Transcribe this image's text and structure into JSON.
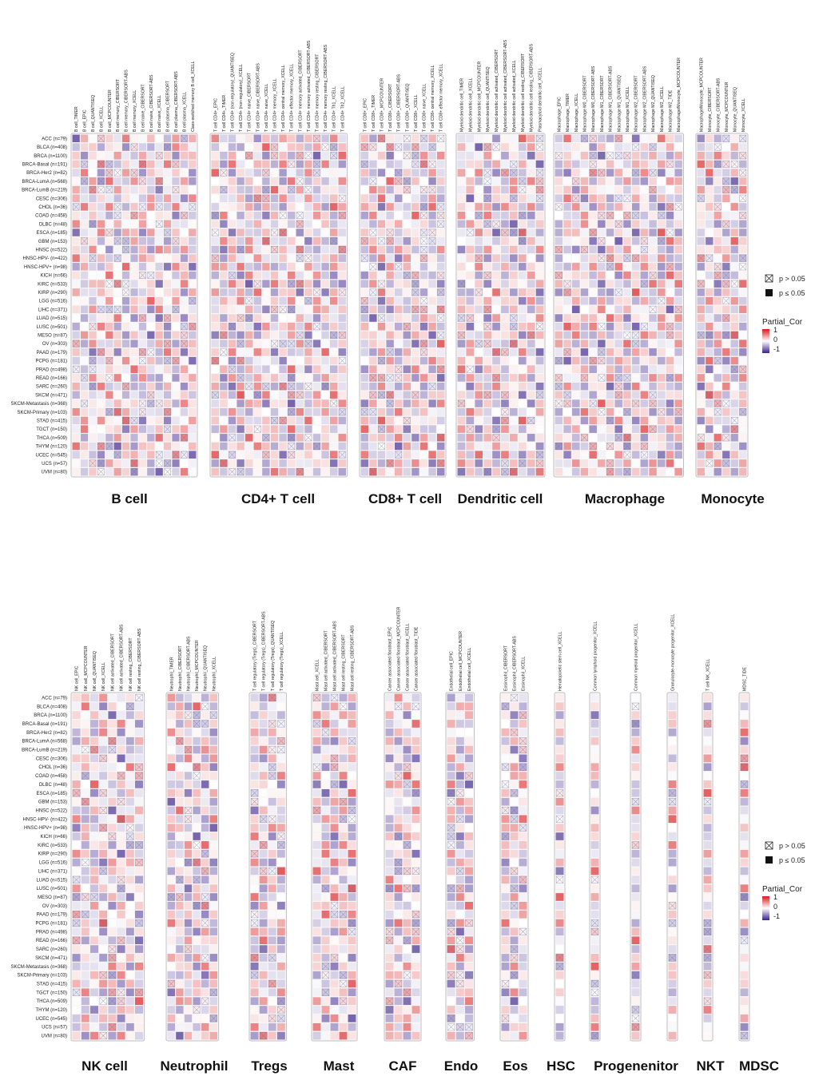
{
  "chart_data": {
    "type": "heatmap",
    "title": "",
    "value_label": "Partial_Cor",
    "value_range": [
      -1,
      1
    ],
    "colors": {
      "negative": "#3b1f8a",
      "zero": "#ffffff",
      "positive": "#d7191c",
      "frame": "#bdbdbd",
      "grid": "#f2f2f2"
    },
    "legend": {
      "ns_label": "p > 0.05",
      "sig_label": "p ≤ 0.05",
      "title": "Partial_Cor",
      "ticks": [
        "1",
        "0",
        "-1"
      ]
    },
    "rows": [
      "ACC (n=79)",
      "BLCA (n=408)",
      "BRCA (n=1100)",
      "BRCA-Basal (n=191)",
      "BRCA-Her2 (n=82)",
      "BRCA-LumA (n=568)",
      "BRCA-LumB (n=219)",
      "CESC (n=306)",
      "CHOL (n=36)",
      "COAD (n=458)",
      "DLBC (n=48)",
      "ESCA (n=185)",
      "GBM (n=153)",
      "HNSC (n=522)",
      "HNSC-HPV- (n=422)",
      "HNSC-HPV+ (n=98)",
      "KICH (n=66)",
      "KIRC (n=533)",
      "KIRP (n=290)",
      "LGG (n=516)",
      "LIHC (n=371)",
      "LUAD (n=515)",
      "LUSC (n=501)",
      "MESO (n=87)",
      "OV (n=303)",
      "PAAD (n=179)",
      "PCPG (n=181)",
      "PRAD (n=498)",
      "READ (n=166)",
      "SARC (n=260)",
      "SKCM (n=471)",
      "SKCM-Metastasis (n=368)",
      "SKCM-Primary (n=103)",
      "STAD (n=415)",
      "TGCT (n=150)",
      "THCA (n=509)",
      "THYM (n=120)",
      "UCEC (n=545)",
      "UCS (n=57)",
      "UVM (n=80)"
    ],
    "panels": [
      {
        "groups": [
          {
            "label": "B cell",
            "columns": [
              "B cell_TIMER",
              "B cell_EPIC",
              "B cell_QUANTISEQ",
              "B cell_XCELL",
              "B cell_MCPCOUNTER",
              "B cell memory_CIBERSORT",
              "B cell memory_CIBERSORT-ABS",
              "B cell memory_XCELL",
              "B cell naive_CIBERSORT",
              "B cell naive_CIBERSORT-ABS",
              "B cell naive_XCELL",
              "B cell plasma_CIBERSORT",
              "B cell plasma_CIBERSORT-ABS",
              "B cell plasma_XCELL",
              "Class-switched memory B cell_XCELL"
            ]
          },
          {
            "label": "CD4+ T cell",
            "columns": [
              "T cell CD4+_EPIC",
              "T cell CD4+_TIMER",
              "T cell CD4+ (non-regulatory)_QUANTISEQ",
              "T cell CD4+ (non-regulatory)_XCELL",
              "T cell CD4+ naive_CIBERSORT",
              "T cell CD4+ naive_CIBERSORT-ABS",
              "T cell CD4+ naive_XCELL",
              "T cell CD4+ memory_XCELL",
              "T cell CD4+ central memory_XCELL",
              "T cell CD4+ effector memory_XCELL",
              "T cell CD4+ memory activated_CIBERSORT",
              "T cell CD4+ memory activated_CIBERSORT-ABS",
              "T cell CD4+ memory resting_CIBERSORT",
              "T cell CD4+ memory resting_CIBERSORT-ABS",
              "T cell CD4+ Th1_XCELL",
              "T cell CD4+ Th2_XCELL"
            ]
          },
          {
            "label": "CD8+ T cell",
            "columns": [
              "T cell CD8+_EPIC",
              "T cell CD8+_TIMER",
              "T cell CD8+_MCPCOUNTER",
              "T cell CD8+_CIBERSORT",
              "T cell CD8+_CIBERSORT-ABS",
              "T cell CD8+_QUANTISEQ",
              "T cell CD8+_XCELL",
              "T cell CD8+ naive_XCELL",
              "T cell CD8+ central memory_XCELL",
              "T cell CD8+ effector memory_XCELL"
            ]
          },
          {
            "label": "Dendritic cell",
            "columns": [
              "Myeloid dendritic cell_TIMER",
              "Myeloid dendritic cell_XCELL",
              "Myeloid dendritic cell_MCPCOUNTER",
              "Myeloid dendritic cell_QUANTISEQ",
              "Myeloid dendritic cell activated_CIBERSORT",
              "Myeloid dendritic cell activated_CIBERSORT-ABS",
              "Myeloid dendritic cell activated_XCELL",
              "Myeloid dendritic cell resting_CIBERSORT",
              "Myeloid dendritic cell resting_CIBERSORT-ABS",
              "Plasmacytoid dendritic cell_XCELL"
            ]
          },
          {
            "label": "Macrophage",
            "columns": [
              "Macrophage_EPIC",
              "Macrophage_TIMER",
              "Macrophage_XCELL",
              "Macrophage M0_CIBERSORT",
              "Macrophage M0_CIBERSORT-ABS",
              "Macrophage M1_CIBERSORT",
              "Macrophage M1_CIBERSORT-ABS",
              "Macrophage M1_QUANTISEQ",
              "Macrophage M1_XCELL",
              "Macrophage M2_CIBERSORT",
              "Macrophage M2_CIBERSORT-ABS",
              "Macrophage M2_QUANTISEQ",
              "Macrophage M2_XCELL",
              "Macrophage M2_TIDE",
              "Macrophage/Monocyte_MCPCOUNTER"
            ]
          },
          {
            "label": "Monocyte",
            "columns": [
              "Macrophage/Monocyte_MCPCOUNTER",
              "Monocyte_CIBERSORT",
              "Monocyte_CIBERSORT-ABS",
              "Monocyte_MCPCOUNTER",
              "Monocyte_QUANTISEQ",
              "Monocyte_XCELL"
            ]
          }
        ]
      },
      {
        "groups": [
          {
            "label": "NK cell",
            "columns": [
              "NK cell_EPIC",
              "NK cell_MCPCOUNTER",
              "NK cell_QUANTISEQ",
              "NK cell_XCELL",
              "NK cell activated_CIBERSORT",
              "NK cell activated_CIBERSORT-ABS",
              "NK cell resting_CIBERSORT",
              "NK cell resting_CIBERSORT-ABS"
            ]
          },
          {
            "label": "Neutrophil",
            "columns": [
              "Neutrophil_TIMER",
              "Neutrophil_CIBERSORT",
              "Neutrophil_CIBERSORT-ABS",
              "Neutrophil_MCPCOUNTER",
              "Neutrophil_QUANTISEQ",
              "Neutrophil_XCELL"
            ]
          },
          {
            "label": "Tregs",
            "columns": [
              "T cell regulatory (Tregs)_CIBERSORT",
              "T cell regulatory (Tregs)_CIBERSORT-ABS",
              "T cell regulatory (Tregs)_QUANTISEQ",
              "T cell regulatory (Tregs)_XCELL"
            ]
          },
          {
            "label": "Mast",
            "columns": [
              "Mast cell_XCELL",
              "Mast cell activated_CIBERSORT",
              "Mast cell activated_CIBERSORT-ABS",
              "Mast cell resting_CIBERSORT",
              "Mast cell resting_CIBERSORT-ABS"
            ]
          },
          {
            "label": "CAF",
            "columns": [
              "Cancer associated fibroblast_EPIC",
              "Cancer associated fibroblast_MCPCOUNTER",
              "Cancer associated fibroblast_XCELL",
              "Cancer associated fibroblast_TIDE"
            ]
          },
          {
            "label": "Endo",
            "columns": [
              "Endothelial cell_EPIC",
              "Endothelial cell_MCPCOUNTER",
              "Endothelial cell_XCELL"
            ]
          },
          {
            "label": "Eos",
            "columns": [
              "Eosinophil_CIBERSORT",
              "Eosinophil_CIBERSORT-ABS",
              "Eosinophil_XCELL"
            ]
          },
          {
            "label": "HSC",
            "columns": [
              "Hematopoietic stem cell_XCELL"
            ]
          },
          {
            "label": "Progenenitor",
            "columns": [
              "Common lymphoid progenitor_XCELL"
            ]
          },
          {
            "label": "",
            "columns": [
              "Common myeloid progenitor_XCELL"
            ]
          },
          {
            "label": "",
            "columns": [
              "Granulocyte-monocyte progenitor_XCELL"
            ]
          },
          {
            "label": "NKT",
            "columns": [
              "T cell NK_XCELL"
            ]
          },
          {
            "label": "MDSC",
            "columns": [
              "MDSC_TIDE"
            ]
          }
        ]
      }
    ]
  }
}
